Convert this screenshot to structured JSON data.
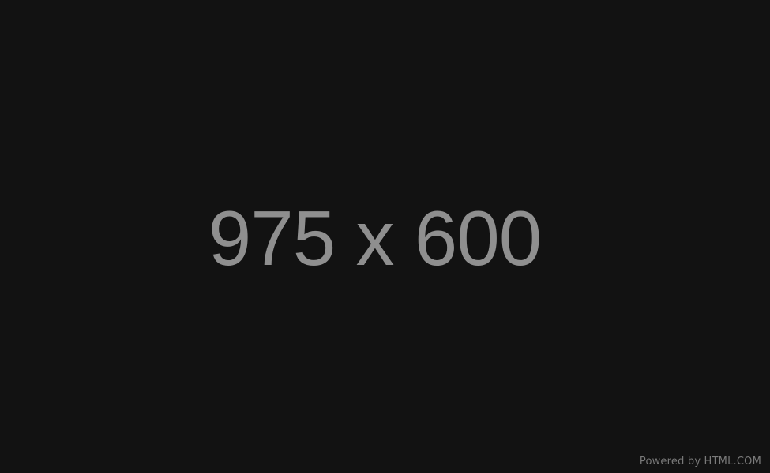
{
  "placeholder": {
    "dimension_text": "975 x 600",
    "powered_by": "Powered by HTML.COM"
  },
  "colors": {
    "background": "#121212",
    "dimension_text": "#8f8f8f",
    "powered_by_text": "#7a7a7a"
  }
}
